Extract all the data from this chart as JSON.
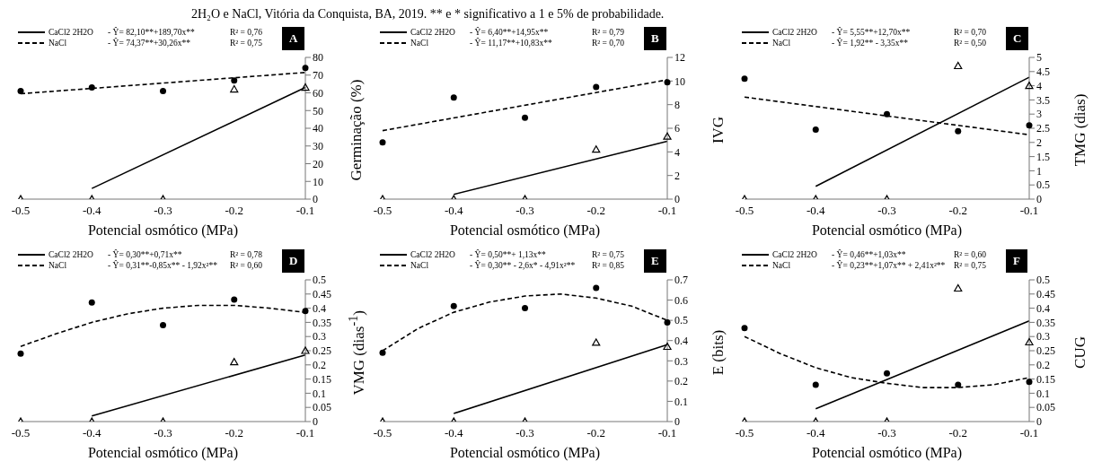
{
  "chart_data": [
    {
      "type": "scatter",
      "title": "A",
      "xlabel": "Potencial osmótico (MPa)",
      "ylabel": "Germinação (%)",
      "xlim": [
        -0.5,
        -0.1
      ],
      "xticks": [
        -0.5,
        -0.4,
        -0.3,
        -0.2,
        -0.1
      ],
      "ylim": [
        0,
        80
      ],
      "yticks": [
        0,
        10,
        20,
        30,
        40,
        50,
        60,
        70,
        80
      ],
      "legend": "top left",
      "annotations": [
        "- Ŷ= 82,10**+189,70x**",
        "R² = 0,76",
        "- Ŷ= 74,37**+30,26x**",
        "R² = 0,75",
        "2H₂O e NaCl, Vitória da Conquista, BA, 2019. ** e * significativo a 1 e 5% de probabilidade."
      ],
      "series": [
        {
          "type": "scatter",
          "marker": "triangle",
          "color": "#000000",
          "x": [
            -0.5,
            -0.4,
            -0.3,
            -0.2,
            -0.1
          ],
          "values": [
            0,
            0,
            0,
            62,
            63
          ]
        },
        {
          "type": "scatter",
          "marker": "circle",
          "color": "#000000",
          "x": [
            -0.5,
            -0.4,
            -0.3,
            -0.2,
            -0.1
          ],
          "values": [
            61,
            63,
            61,
            67,
            74
          ]
        },
        {
          "type": "line",
          "name": "CaCl2 2H2O",
          "line_style": "solid",
          "color": "#000000",
          "x": [
            -0.4,
            -0.1
          ],
          "values": [
            6,
            63
          ]
        },
        {
          "type": "line",
          "name": "NaCl",
          "line_style": "dashed",
          "color": "#000000",
          "x": [
            -0.5,
            -0.1
          ],
          "values": [
            59.5,
            71.5
          ]
        }
      ]
    },
    {
      "type": "scatter",
      "title": "B",
      "xlabel": "Potencial osmótico (MPa)",
      "ylabel": "IVG",
      "xlim": [
        -0.5,
        -0.1
      ],
      "xticks": [
        -0.5,
        -0.4,
        -0.3,
        -0.2,
        -0.1
      ],
      "ylim": [
        0,
        12
      ],
      "yticks": [
        0,
        2,
        4,
        6,
        8,
        10,
        12
      ],
      "legend": "top left",
      "annotations": [
        "- Ŷ= 6,40**+14,95x**",
        "R² = 0,79",
        "- Ŷ= 11,17**+10,83x**",
        "R² = 0,70"
      ],
      "series": [
        {
          "type": "scatter",
          "marker": "triangle",
          "color": "#000000",
          "x": [
            -0.5,
            -0.4,
            -0.3,
            -0.2,
            -0.1
          ],
          "values": [
            0,
            0,
            0,
            4.2,
            5.3
          ]
        },
        {
          "type": "scatter",
          "marker": "circle",
          "color": "#000000",
          "x": [
            -0.5,
            -0.4,
            -0.3,
            -0.2,
            -0.1
          ],
          "values": [
            4.8,
            8.6,
            6.9,
            9.5,
            9.9
          ]
        },
        {
          "type": "line",
          "name": "CaCl2 2H2O",
          "line_style": "solid",
          "color": "#000000",
          "x": [
            -0.4,
            -0.1
          ],
          "values": [
            0.4,
            4.9
          ]
        },
        {
          "type": "line",
          "name": "NaCl",
          "line_style": "dashed",
          "color": "#000000",
          "x": [
            -0.5,
            -0.1
          ],
          "values": [
            5.8,
            10.1
          ]
        }
      ]
    },
    {
      "type": "scatter",
      "title": "C",
      "xlabel": "Potencial osmótico (MPa)",
      "ylabel": "TMG (dias)",
      "xlim": [
        -0.5,
        -0.1
      ],
      "xticks": [
        -0.5,
        -0.4,
        -0.3,
        -0.2,
        -0.1
      ],
      "ylim": [
        0,
        5
      ],
      "yticks": [
        0,
        0.5,
        1,
        1.5,
        2,
        2.5,
        3,
        3.5,
        4,
        4.5,
        5
      ],
      "legend": "top left",
      "annotations": [
        "- Ŷ= 5,55**+12,70x**",
        "R² = 0,70",
        "- Ŷ= 1,92** - 3,35x**",
        "R² = 0,50"
      ],
      "series": [
        {
          "type": "scatter",
          "marker": "triangle",
          "color": "#000000",
          "x": [
            -0.5,
            -0.4,
            -0.3,
            -0.2,
            -0.1
          ],
          "values": [
            0,
            0,
            0,
            4.7,
            4.0
          ]
        },
        {
          "type": "scatter",
          "marker": "circle",
          "color": "#000000",
          "x": [
            -0.5,
            -0.4,
            -0.3,
            -0.2,
            -0.1
          ],
          "values": [
            4.25,
            2.45,
            3.0,
            2.4,
            2.6
          ]
        },
        {
          "type": "line",
          "name": "CaCl2 2H2O",
          "line_style": "solid",
          "color": "#000000",
          "x": [
            -0.4,
            -0.1
          ],
          "values": [
            0.45,
            4.3
          ]
        },
        {
          "type": "line",
          "name": "NaCl",
          "line_style": "dashed",
          "color": "#000000",
          "x": [
            -0.5,
            -0.1
          ],
          "values": [
            3.6,
            2.27
          ]
        }
      ]
    },
    {
      "type": "scatter",
      "title": "D",
      "xlabel": "Potencial osmótico (MPa)",
      "ylabel": "VMG (dias$^{-1}$)",
      "xlim": [
        -0.5,
        -0.1
      ],
      "xticks": [
        -0.5,
        -0.4,
        -0.3,
        -0.2,
        -0.1
      ],
      "ylim": [
        0,
        0.5
      ],
      "yticks": [
        0,
        0.05,
        0.1,
        0.15,
        0.2,
        0.25,
        0.3,
        0.35,
        0.4,
        0.45,
        0.5
      ],
      "legend": "top left",
      "annotations": [
        "- Ŷ= 0,30**+0,71x**",
        "R² = 0,78",
        "- Ŷ= 0,31**-0,85x** - 1,92x²**",
        "R² = 0,60"
      ],
      "series": [
        {
          "type": "scatter",
          "marker": "triangle",
          "color": "#000000",
          "x": [
            -0.5,
            -0.4,
            -0.3,
            -0.2,
            -0.1
          ],
          "values": [
            0,
            0,
            0,
            0.21,
            0.25
          ]
        },
        {
          "type": "scatter",
          "marker": "circle",
          "color": "#000000",
          "x": [
            -0.5,
            -0.4,
            -0.3,
            -0.2,
            -0.1
          ],
          "values": [
            0.24,
            0.42,
            0.34,
            0.43,
            0.39
          ]
        },
        {
          "type": "line",
          "name": "CaCl2 2H2O",
          "line_style": "solid",
          "color": "#000000",
          "x": [
            -0.4,
            -0.1
          ],
          "values": [
            0.02,
            0.235
          ]
        },
        {
          "type": "line",
          "name": "NaCl",
          "line_style": "dashed",
          "color": "#000000",
          "x": [
            -0.5,
            -0.45,
            -0.4,
            -0.35,
            -0.3,
            -0.25,
            -0.2,
            -0.15,
            -0.1
          ],
          "values": [
            0.265,
            0.31,
            0.35,
            0.38,
            0.4,
            0.41,
            0.41,
            0.4,
            0.385
          ]
        }
      ]
    },
    {
      "type": "scatter",
      "title": "E",
      "xlabel": "Potencial osmótico (MPa)",
      "ylabel": "E (bits)",
      "xlim": [
        -0.5,
        -0.1
      ],
      "xticks": [
        -0.5,
        -0.4,
        -0.3,
        -0.2,
        -0.1
      ],
      "ylim": [
        0,
        0.7
      ],
      "yticks": [
        0,
        0.1,
        0.2,
        0.3,
        0.4,
        0.5,
        0.6,
        0.7
      ],
      "legend": "top left",
      "annotations": [
        "- Ŷ= 0,50**+ 1,13x**",
        "R² = 0,75",
        "- Ŷ= 0,30** - 2,6x* - 4,91x²**",
        "R² = 0,85"
      ],
      "series": [
        {
          "type": "scatter",
          "marker": "triangle",
          "color": "#000000",
          "x": [
            -0.5,
            -0.4,
            -0.3,
            -0.2,
            -0.1
          ],
          "values": [
            0,
            0,
            0,
            0.39,
            0.37
          ]
        },
        {
          "type": "scatter",
          "marker": "circle",
          "color": "#000000",
          "x": [
            -0.5,
            -0.4,
            -0.3,
            -0.2,
            -0.1
          ],
          "values": [
            0.34,
            0.57,
            0.56,
            0.66,
            0.49
          ]
        },
        {
          "type": "line",
          "name": "CaCl2 2H2O",
          "line_style": "solid",
          "color": "#000000",
          "x": [
            -0.4,
            -0.1
          ],
          "values": [
            0.04,
            0.38
          ]
        },
        {
          "type": "line",
          "name": "NaCl",
          "line_style": "dashed",
          "color": "#000000",
          "x": [
            -0.5,
            -0.45,
            -0.4,
            -0.35,
            -0.3,
            -0.25,
            -0.2,
            -0.15,
            -0.1
          ],
          "values": [
            0.35,
            0.46,
            0.54,
            0.59,
            0.62,
            0.63,
            0.61,
            0.57,
            0.5
          ]
        }
      ]
    },
    {
      "type": "scatter",
      "title": "F",
      "xlabel": "Potencial osmótico (MPa)",
      "ylabel": "CUG",
      "xlim": [
        -0.5,
        -0.1
      ],
      "xticks": [
        -0.5,
        -0.4,
        -0.3,
        -0.2,
        -0.1
      ],
      "ylim": [
        0,
        0.5
      ],
      "yticks": [
        0,
        0.05,
        0.1,
        0.15,
        0.2,
        0.25,
        0.3,
        0.35,
        0.4,
        0.45,
        0.5
      ],
      "legend": "top left",
      "annotations": [
        "- Ŷ= 0,46**+1,03x**",
        "R² = 0,60",
        "- Ŷ= 0,23**+1,07x** + 2,41x²**",
        "R² = 0,75"
      ],
      "series": [
        {
          "type": "scatter",
          "marker": "triangle",
          "color": "#000000",
          "x": [
            -0.5,
            -0.4,
            -0.3,
            -0.2,
            -0.1
          ],
          "values": [
            0,
            0,
            0,
            0.47,
            0.28
          ]
        },
        {
          "type": "scatter",
          "marker": "circle",
          "color": "#000000",
          "x": [
            -0.5,
            -0.4,
            -0.3,
            -0.2,
            -0.1
          ],
          "values": [
            0.33,
            0.13,
            0.17,
            0.13,
            0.14
          ]
        },
        {
          "type": "line",
          "name": "CaCl2 2H2O",
          "line_style": "solid",
          "color": "#000000",
          "x": [
            -0.4,
            -0.1
          ],
          "values": [
            0.045,
            0.355
          ]
        },
        {
          "type": "line",
          "name": "NaCl",
          "line_style": "dashed",
          "color": "#000000",
          "x": [
            -0.5,
            -0.45,
            -0.4,
            -0.35,
            -0.3,
            -0.25,
            -0.2,
            -0.15,
            -0.1
          ],
          "values": [
            0.3,
            0.24,
            0.19,
            0.155,
            0.135,
            0.12,
            0.12,
            0.13,
            0.155
          ]
        }
      ]
    }
  ]
}
